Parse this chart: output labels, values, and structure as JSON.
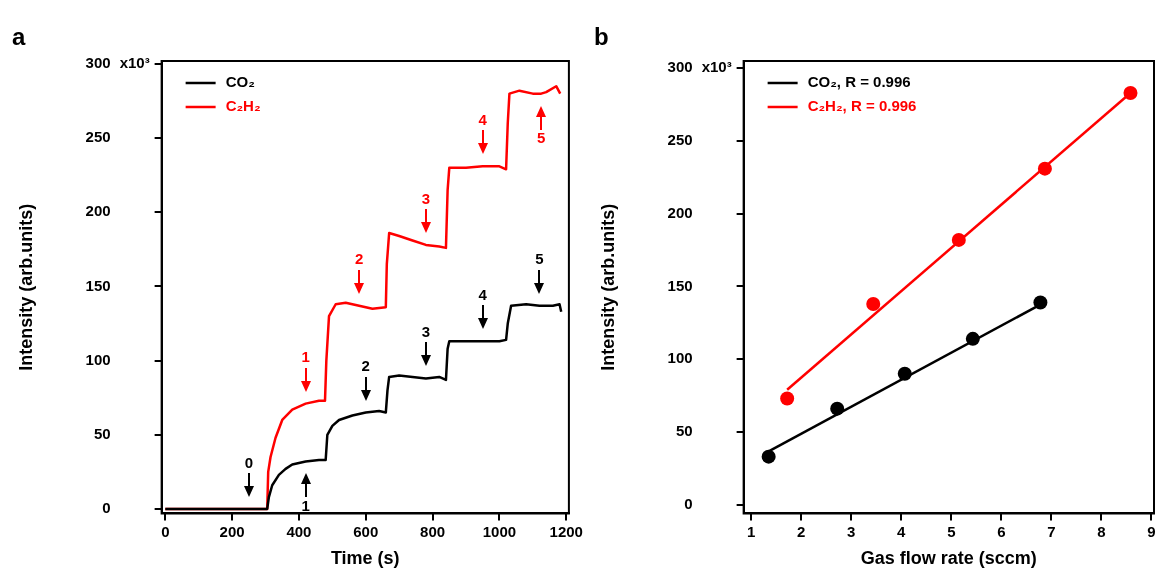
{
  "chart_data": [
    {
      "type": "line",
      "title": "a",
      "xlabel": "Time (s)",
      "ylabel": "Intensity (arb.units)",
      "xlim": [
        -11,
        1208
      ],
      "ylim": [
        -3,
        302
      ],
      "xticks": [
        0,
        200,
        400,
        600,
        800,
        1000,
        1200
      ],
      "yticks": [
        0,
        50,
        100,
        150,
        200,
        250,
        300
      ],
      "grid": false,
      "legend": "top left",
      "marker": "none",
      "line_style": "solid",
      "series": [
        {
          "name": "CO₂",
          "color": "#000000",
          "x": [
            0,
            305,
            310,
            320,
            340,
            360,
            380,
            420,
            460,
            480,
            485,
            500,
            520,
            560,
            600,
            640,
            660,
            665,
            670,
            700,
            740,
            780,
            820,
            840,
            845,
            850,
            900,
            950,
            1000,
            1020,
            1025,
            1035,
            1080,
            1120,
            1160,
            1180,
            1185
          ],
          "values": [
            0,
            0,
            8,
            16,
            23,
            27,
            30,
            32,
            33,
            33,
            50,
            56,
            60,
            63,
            65,
            66,
            65,
            80,
            89,
            90,
            89,
            88,
            89,
            87,
            108,
            113,
            113,
            113,
            113,
            114,
            125,
            137,
            138,
            137,
            137,
            138,
            133
          ]
        },
        {
          "name": "C₂H₂",
          "color": "#ff0000",
          "x": [
            0,
            305,
            308,
            315,
            330,
            350,
            380,
            420,
            460,
            478,
            482,
            490,
            510,
            540,
            580,
            620,
            660,
            663,
            670,
            700,
            740,
            780,
            820,
            840,
            845,
            850,
            900,
            950,
            1000,
            1020,
            1025,
            1030,
            1060,
            1100,
            1125,
            1140,
            1170,
            1182
          ],
          "values": [
            0,
            0,
            25,
            35,
            48,
            60,
            67,
            71,
            73,
            73,
            100,
            130,
            138,
            139,
            137,
            135,
            136,
            165,
            186,
            184,
            181,
            178,
            177,
            176,
            215,
            230,
            230,
            231,
            231,
            229,
            260,
            280,
            282,
            280,
            280,
            281,
            285,
            280
          ]
        }
      ],
      "annotations": [
        "x10³",
        {
          "text": "0",
          "x": 250,
          "y": 0
        },
        {
          "text": "1",
          "x": 420,
          "y": 32
        },
        {
          "text": "2",
          "x": 600,
          "y": 65
        },
        {
          "text": "3",
          "x": 780,
          "y": 88
        },
        {
          "text": "4",
          "x": 950,
          "y": 113
        },
        {
          "text": "5",
          "x": 1120,
          "y": 137
        },
        {
          "text": "1",
          "x": 420,
          "y": 71
        },
        {
          "text": "2",
          "x": 580,
          "y": 137
        },
        {
          "text": "3",
          "x": 780,
          "y": 178
        },
        {
          "text": "4",
          "x": 950,
          "y": 231
        },
        {
          "text": "5",
          "x": 1125,
          "y": 280
        }
      ]
    },
    {
      "type": "scatter",
      "title": "b",
      "xlabel": "Gas flow rate (sccm)",
      "ylabel": "Intensity (arb.units)",
      "xlim": [
        0.85,
        9.05
      ],
      "ylim": [
        -6,
        305
      ],
      "xticks": [
        1,
        2,
        3,
        4,
        5,
        6,
        7,
        8,
        9
      ],
      "yticks": [
        0,
        50,
        100,
        150,
        200,
        250,
        300
      ],
      "grid": false,
      "legend": "top left",
      "annotations": [
        "x10³"
      ],
      "series": [
        {
          "name": "CO₂, R = 0.996",
          "type": "line",
          "marker": "none",
          "color": "#000000",
          "x": [
            1.35,
            6.75
          ],
          "values": [
            36.6,
            137
          ]
        },
        {
          "name": "C₂H₂, R = 0.996",
          "type": "line",
          "marker": "none",
          "color": "#ff0000",
          "x": [
            1.72,
            8.58
          ],
          "values": [
            79,
            283
          ]
        },
        {
          "marker": "circle",
          "color": "#000000",
          "x": [
            1.35,
            2.72,
            4.07,
            5.43,
            6.78
          ],
          "values": [
            33,
            66,
            90,
            114,
            139
          ]
        },
        {
          "marker": "circle",
          "color": "#ff0000",
          "x": [
            1.72,
            3.44,
            5.15,
            6.87,
            8.58
          ],
          "values": [
            73,
            138,
            182,
            231,
            283
          ]
        }
      ]
    }
  ]
}
